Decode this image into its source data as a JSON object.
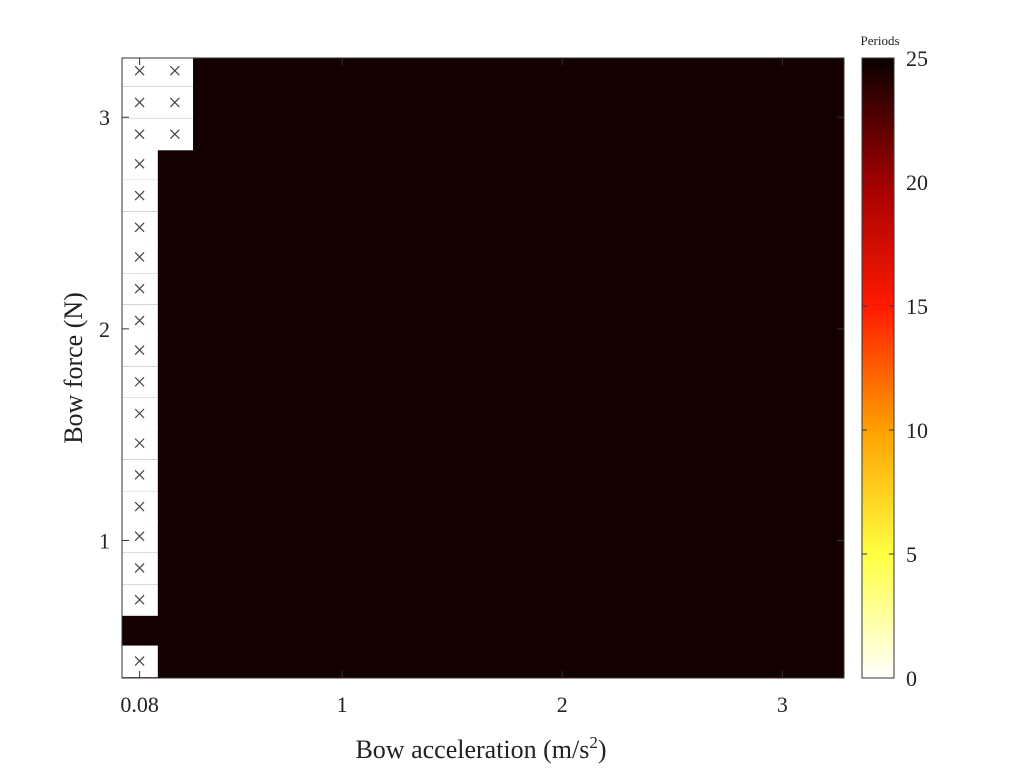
{
  "chart_data": {
    "type": "heatmap",
    "xlabel": "Bow acceleration (m/s²)",
    "xlabel_main": "Bow acceleration (m/s",
    "xlabel_sup": "2",
    "xlabel_end": ")",
    "ylabel": "Bow force (N)",
    "x_ticks": [
      "0.08",
      "1",
      "2",
      "3"
    ],
    "x_tick_values": [
      0.08,
      1,
      2,
      3
    ],
    "y_ticks": [
      "1",
      "2",
      "3"
    ],
    "y_tick_values": [
      1,
      2,
      3
    ],
    "xlim": [
      0,
      3.28
    ],
    "ylim": [
      0.35,
      3.28
    ],
    "colorbar": {
      "title": "Periods",
      "min": 0,
      "max": 25,
      "ticks": [
        "0",
        "5",
        "10",
        "15",
        "20",
        "25"
      ],
      "tick_values": [
        0,
        5,
        10,
        15,
        20,
        25
      ],
      "colormap": "hot (reversed)"
    },
    "default_value": 25,
    "cell_size": {
      "dx": 0.16,
      "dy": 0.1467
    },
    "no_data_cells": [
      {
        "x": 0.08,
        "y": 0.43
      },
      {
        "x": 0.08,
        "y": 0.72
      },
      {
        "x": 0.08,
        "y": 0.87
      },
      {
        "x": 0.08,
        "y": 1.02
      },
      {
        "x": 0.08,
        "y": 1.16
      },
      {
        "x": 0.08,
        "y": 1.31
      },
      {
        "x": 0.08,
        "y": 1.46
      },
      {
        "x": 0.08,
        "y": 1.6
      },
      {
        "x": 0.08,
        "y": 1.75
      },
      {
        "x": 0.08,
        "y": 1.9
      },
      {
        "x": 0.08,
        "y": 2.04
      },
      {
        "x": 0.08,
        "y": 2.19
      },
      {
        "x": 0.08,
        "y": 2.34
      },
      {
        "x": 0.08,
        "y": 2.48
      },
      {
        "x": 0.08,
        "y": 2.63
      },
      {
        "x": 0.08,
        "y": 2.78
      },
      {
        "x": 0.08,
        "y": 2.92
      },
      {
        "x": 0.08,
        "y": 3.07
      },
      {
        "x": 0.08,
        "y": 3.22
      },
      {
        "x": 0.24,
        "y": 2.92
      },
      {
        "x": 0.24,
        "y": 3.07
      },
      {
        "x": 0.24,
        "y": 3.22
      }
    ]
  }
}
